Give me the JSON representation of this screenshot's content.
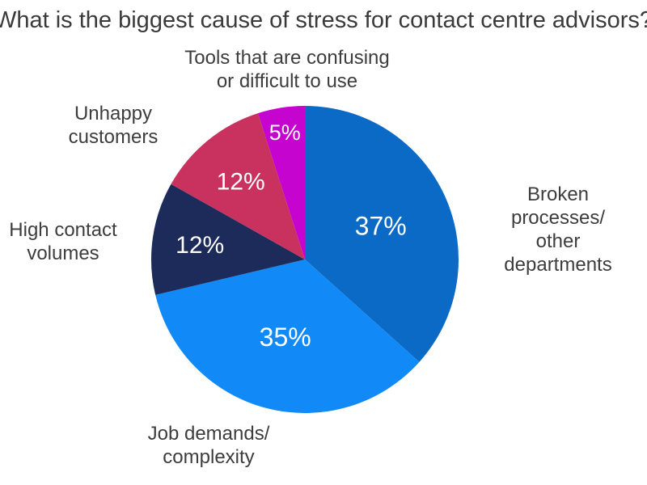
{
  "title": "What is the biggest cause of stress for contact centre advisors?",
  "chart_data": {
    "type": "pie",
    "title": "What is the biggest cause of stress for contact centre advisors?",
    "unit": "%",
    "direction": "clockwise",
    "start_angle_deg": 0,
    "legend": "outside-labels",
    "value_label_color": "#ffffff",
    "slices": [
      {
        "label": "Broken processes/\nother departments",
        "value": 37,
        "display": "37%",
        "color": "#0a6ac6"
      },
      {
        "label": "Job demands/\ncomplexity",
        "value": 35,
        "display": "35%",
        "color": "#118af7"
      },
      {
        "label": "High contact\nvolumes",
        "value": 12,
        "display": "12%",
        "color": "#1c2b59"
      },
      {
        "label": "Unhappy\ncustomers",
        "value": 12,
        "display": "12%",
        "color": "#c9325f"
      },
      {
        "label": "Tools that are confusing\nor difficult to use",
        "value": 5,
        "display": "5%",
        "color": "#c505cf"
      }
    ],
    "layout_hints": {
      "center": [
        377,
        321
      ],
      "radius": 190,
      "value_label_radius_factor": [
        0.54,
        0.52,
        0.69,
        0.66,
        0.84
      ],
      "value_label_font_px": [
        32,
        32,
        30,
        30,
        27
      ]
    }
  }
}
